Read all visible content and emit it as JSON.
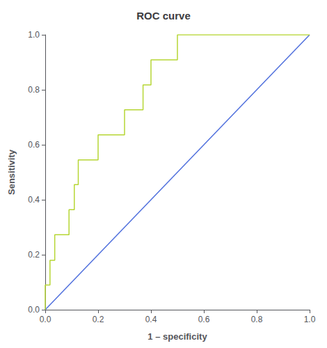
{
  "chart_data": {
    "type": "line",
    "title": "ROC curve",
    "xlabel": "1 – specificity",
    "ylabel": "Sensitivity",
    "xlim": [
      0.0,
      1.0
    ],
    "ylim": [
      0.0,
      1.0
    ],
    "xticks": [
      {
        "value": 0.0,
        "label": "0.0"
      },
      0.2,
      0.4,
      0.6,
      0.8,
      {
        "value": 1.0,
        "label": "1.0"
      }
    ],
    "yticks": [
      {
        "value": 0.0,
        "label": "0.0"
      },
      0.2,
      0.4,
      0.6,
      0.8,
      {
        "value": 1.0,
        "label": "1.0"
      }
    ],
    "grid": false,
    "series": [
      {
        "x": [
          0.0,
          1.0
        ],
        "values": [
          0.0,
          1.0
        ]
      },
      {
        "x": [
          0.0,
          0.0,
          0.018,
          0.018,
          0.036,
          0.036,
          0.09,
          0.09,
          0.11,
          0.11,
          0.125,
          0.125,
          0.2,
          0.2,
          0.25,
          0.25,
          0.3,
          0.3,
          0.37,
          0.37,
          0.4,
          0.4,
          0.45,
          0.45,
          0.5,
          0.5,
          1.0
        ],
        "values": [
          0.0,
          0.09,
          0.09,
          0.18,
          0.18,
          0.273,
          0.273,
          0.364,
          0.364,
          0.455,
          0.455,
          0.545,
          0.545,
          0.636,
          0.636,
          0.636,
          0.636,
          0.727,
          0.727,
          0.818,
          0.818,
          0.909,
          0.909,
          0.909,
          0.909,
          1.0,
          1.0
        ]
      }
    ]
  }
}
